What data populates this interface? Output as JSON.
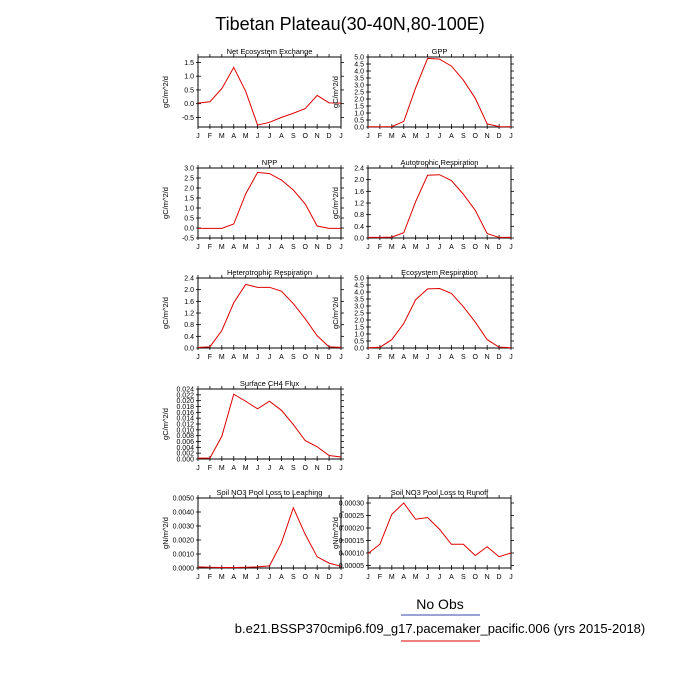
{
  "figure": {
    "title": "Tibetan Plateau(30-40N,80-100E)",
    "legend_obs": "No Obs",
    "legend_case": "b.e21.BSSP370cmip6.f09_g17.pacemaker_pacific.006 (yrs 2015-2018)",
    "colors": {
      "model": "#dd0000",
      "obs_line": "#3344aa",
      "case_line": "#dd0000",
      "axis": "#000000"
    }
  },
  "chart_data": [
    {
      "type": "line",
      "title": "Net Ecosystem Exchange",
      "ylabel": "gC/m^2/d",
      "x": [
        "J",
        "F",
        "M",
        "A",
        "M",
        "J",
        "J",
        "A",
        "S",
        "O",
        "N",
        "D",
        "J"
      ],
      "ylim": [
        -0.85,
        1.7
      ],
      "yticks": [
        {
          "v": -0.5,
          "label": "-0.5"
        },
        {
          "v": 0.0,
          "label": "0.0"
        },
        {
          "v": 0.5,
          "label": "0.5"
        },
        {
          "v": 1.0,
          "label": "1.0"
        },
        {
          "v": 1.5,
          "label": "1.5"
        }
      ],
      "series": [
        {
          "values": [
            0.02,
            0.07,
            0.55,
            1.32,
            0.45,
            -0.78,
            -0.68,
            -0.5,
            -0.35,
            -0.18,
            0.3,
            0.03,
            0.02
          ]
        }
      ]
    },
    {
      "type": "line",
      "title": "GPP",
      "ylabel": "gC/m^2/d",
      "x": [
        "J",
        "F",
        "M",
        "A",
        "M",
        "J",
        "J",
        "A",
        "S",
        "O",
        "N",
        "D",
        "J"
      ],
      "ylim": [
        0.0,
        5.0
      ],
      "yticks": [
        {
          "v": 0.0,
          "label": "0.0"
        },
        {
          "v": 0.5,
          "label": "0.5"
        },
        {
          "v": 1.0,
          "label": "1.0"
        },
        {
          "v": 1.5,
          "label": "1.5"
        },
        {
          "v": 2.0,
          "label": "2.0"
        },
        {
          "v": 2.5,
          "label": "2.5"
        },
        {
          "v": 3.0,
          "label": "3.0"
        },
        {
          "v": 3.5,
          "label": "3.5"
        },
        {
          "v": 4.0,
          "label": "4.0"
        },
        {
          "v": 4.5,
          "label": "4.5"
        },
        {
          "v": 5.0,
          "label": "5.0"
        }
      ],
      "series": [
        {
          "values": [
            0.02,
            0.02,
            0.03,
            0.4,
            2.8,
            4.9,
            4.85,
            4.35,
            3.35,
            2.05,
            0.22,
            0.03,
            0.02
          ]
        }
      ]
    },
    {
      "type": "line",
      "title": "NPP",
      "ylabel": "gC/m^2/d",
      "x": [
        "J",
        "F",
        "M",
        "A",
        "M",
        "J",
        "J",
        "A",
        "S",
        "O",
        "N",
        "D",
        "J"
      ],
      "ylim": [
        -0.5,
        3.0
      ],
      "yticks": [
        {
          "v": -0.5,
          "label": "-0.5"
        },
        {
          "v": 0.0,
          "label": "0.0"
        },
        {
          "v": 0.5,
          "label": "0.5"
        },
        {
          "v": 1.0,
          "label": "1.0"
        },
        {
          "v": 1.5,
          "label": "1.5"
        },
        {
          "v": 2.0,
          "label": "2.0"
        },
        {
          "v": 2.5,
          "label": "2.5"
        },
        {
          "v": 3.0,
          "label": "3.0"
        }
      ],
      "series": [
        {
          "values": [
            -0.02,
            -0.02,
            -0.02,
            0.2,
            1.7,
            2.78,
            2.72,
            2.4,
            1.9,
            1.2,
            0.1,
            -0.02,
            -0.02
          ]
        }
      ]
    },
    {
      "type": "line",
      "title": "Autotrophic Respiration",
      "ylabel": "gC/m^2/d",
      "x": [
        "J",
        "F",
        "M",
        "A",
        "M",
        "J",
        "J",
        "A",
        "S",
        "O",
        "N",
        "D",
        "J"
      ],
      "ylim": [
        0.0,
        2.4
      ],
      "yticks": [
        {
          "v": 0.0,
          "label": "0.0"
        },
        {
          "v": 0.4,
          "label": "0.4"
        },
        {
          "v": 0.8,
          "label": "0.8"
        },
        {
          "v": 1.2,
          "label": "1.2"
        },
        {
          "v": 1.6,
          "label": "1.6"
        },
        {
          "v": 2.0,
          "label": "2.0"
        },
        {
          "v": 2.4,
          "label": "2.4"
        }
      ],
      "series": [
        {
          "values": [
            0.02,
            0.02,
            0.03,
            0.18,
            1.25,
            2.15,
            2.17,
            1.97,
            1.5,
            0.95,
            0.15,
            0.02,
            0.02
          ]
        }
      ]
    },
    {
      "type": "line",
      "title": "Heterotrophic Respiration",
      "ylabel": "gC/m^2/d",
      "x": [
        "J",
        "F",
        "M",
        "A",
        "M",
        "J",
        "J",
        "A",
        "S",
        "O",
        "N",
        "D",
        "J"
      ],
      "ylim": [
        0.0,
        2.4
      ],
      "yticks": [
        {
          "v": 0.0,
          "label": "0.0"
        },
        {
          "v": 0.4,
          "label": "0.4"
        },
        {
          "v": 0.8,
          "label": "0.8"
        },
        {
          "v": 1.2,
          "label": "1.2"
        },
        {
          "v": 1.6,
          "label": "1.6"
        },
        {
          "v": 2.0,
          "label": "2.0"
        },
        {
          "v": 2.4,
          "label": "2.4"
        }
      ],
      "series": [
        {
          "values": [
            0.02,
            0.04,
            0.6,
            1.55,
            2.18,
            2.08,
            2.08,
            1.95,
            1.52,
            1.0,
            0.42,
            0.04,
            0.02
          ]
        }
      ]
    },
    {
      "type": "line",
      "title": "Ecosystem Respiration",
      "ylabel": "gC/m^2/d",
      "x": [
        "J",
        "F",
        "M",
        "A",
        "M",
        "J",
        "J",
        "A",
        "S",
        "O",
        "N",
        "D",
        "J"
      ],
      "ylim": [
        0.0,
        5.0
      ],
      "yticks": [
        {
          "v": 0.0,
          "label": "0.0"
        },
        {
          "v": 0.5,
          "label": "0.5"
        },
        {
          "v": 1.0,
          "label": "1.0"
        },
        {
          "v": 1.5,
          "label": "1.5"
        },
        {
          "v": 2.0,
          "label": "2.0"
        },
        {
          "v": 2.5,
          "label": "2.5"
        },
        {
          "v": 3.0,
          "label": "3.0"
        },
        {
          "v": 3.5,
          "label": "3.5"
        },
        {
          "v": 4.0,
          "label": "4.0"
        },
        {
          "v": 4.5,
          "label": "4.5"
        },
        {
          "v": 5.0,
          "label": "5.0"
        }
      ],
      "series": [
        {
          "values": [
            0.02,
            0.05,
            0.6,
            1.75,
            3.45,
            4.22,
            4.25,
            3.9,
            2.95,
            1.85,
            0.6,
            0.06,
            0.02
          ]
        }
      ]
    },
    {
      "type": "line",
      "title": "Surface CH4 Flux",
      "ylabel": "gC/m^2/d",
      "x": [
        "J",
        "F",
        "M",
        "A",
        "M",
        "J",
        "J",
        "A",
        "S",
        "O",
        "N",
        "D",
        "J"
      ],
      "ylim": [
        0.0,
        0.024
      ],
      "yticks": [
        {
          "v": 0.0,
          "label": "0.000"
        },
        {
          "v": 0.002,
          "label": "0.002"
        },
        {
          "v": 0.004,
          "label": "0.004"
        },
        {
          "v": 0.006,
          "label": "0.006"
        },
        {
          "v": 0.008,
          "label": "0.008"
        },
        {
          "v": 0.01,
          "label": "0.010"
        },
        {
          "v": 0.012,
          "label": "0.012"
        },
        {
          "v": 0.014,
          "label": "0.014"
        },
        {
          "v": 0.016,
          "label": "0.016"
        },
        {
          "v": 0.018,
          "label": "0.018"
        },
        {
          "v": 0.02,
          "label": "0.020"
        },
        {
          "v": 0.022,
          "label": "0.022"
        },
        {
          "v": 0.024,
          "label": "0.024"
        }
      ],
      "series": [
        {
          "values": [
            0.0003,
            0.0003,
            0.0078,
            0.0222,
            0.0198,
            0.0172,
            0.0198,
            0.0167,
            0.0118,
            0.0063,
            0.0042,
            0.0012,
            0.0007
          ]
        }
      ]
    },
    {
      "type": "line",
      "title": "Soil NO3 Pool Loss to Leaching",
      "ylabel": "gN/m^2/d",
      "x": [
        "J",
        "F",
        "M",
        "A",
        "M",
        "J",
        "J",
        "A",
        "S",
        "O",
        "N",
        "D",
        "J"
      ],
      "ylim": [
        0.0,
        0.005
      ],
      "yticks": [
        {
          "v": 0.0,
          "label": "0.0000"
        },
        {
          "v": 0.001,
          "label": "0.0010"
        },
        {
          "v": 0.002,
          "label": "0.0020"
        },
        {
          "v": 0.003,
          "label": "0.0030"
        },
        {
          "v": 0.004,
          "label": "0.0040"
        },
        {
          "v": 0.005,
          "label": "0.0050"
        }
      ],
      "series": [
        {
          "values": [
            8e-05,
            5e-05,
            4e-05,
            4e-05,
            5e-05,
            8e-05,
            0.00015,
            0.0018,
            0.0043,
            0.0024,
            0.0008,
            0.00035,
            0.00012
          ]
        }
      ]
    },
    {
      "type": "line",
      "title": "Soil NO3 Pool Loss to Runoff",
      "ylabel": "gN/m^2/d",
      "x": [
        "J",
        "F",
        "M",
        "A",
        "M",
        "J",
        "J",
        "A",
        "S",
        "O",
        "N",
        "D",
        "J"
      ],
      "ylim": [
        4e-05,
        0.00032
      ],
      "yticks": [
        {
          "v": 5e-05,
          "label": "0.00005"
        },
        {
          "v": 0.0001,
          "label": "0.00010"
        },
        {
          "v": 0.00015,
          "label": "0.00015"
        },
        {
          "v": 0.0002,
          "label": "0.00020"
        },
        {
          "v": 0.00025,
          "label": "0.00025"
        },
        {
          "v": 0.0003,
          "label": "0.00030"
        }
      ],
      "series": [
        {
          "values": [
            9.8e-05,
            0.000135,
            0.000255,
            0.0003,
            0.000235,
            0.000242,
            0.000195,
            0.000135,
            0.000135,
            9e-05,
            0.000125,
            8.5e-05,
            0.0001
          ]
        }
      ]
    }
  ]
}
